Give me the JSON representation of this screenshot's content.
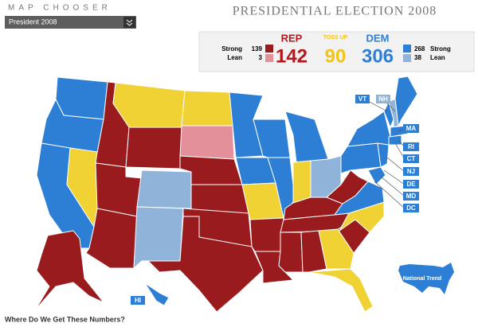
{
  "header": {
    "chooser_label": "MAP CHOOSER",
    "chooser_value": "President 2008",
    "title": "PRESIDENTIAL ELECTION 2008"
  },
  "scoreboard": {
    "rep": {
      "label": "REP",
      "total": 142,
      "strong_label": "Strong",
      "strong": 139,
      "lean_label": "Lean",
      "lean": 3
    },
    "tossup": {
      "label": "TOSS UP",
      "total": 90
    },
    "dem": {
      "label": "DEM",
      "total": 306,
      "strong_label": "Strong",
      "strong": 268,
      "lean_label": "Lean",
      "lean": 38
    }
  },
  "state_labels": [
    "VT",
    "NH",
    "MA",
    "RI",
    "CT",
    "NJ",
    "DE",
    "MD",
    "DC",
    "HI"
  ],
  "national_trend": "National Trend",
  "footer_link": "Where Do We Get These Numbers?"
}
